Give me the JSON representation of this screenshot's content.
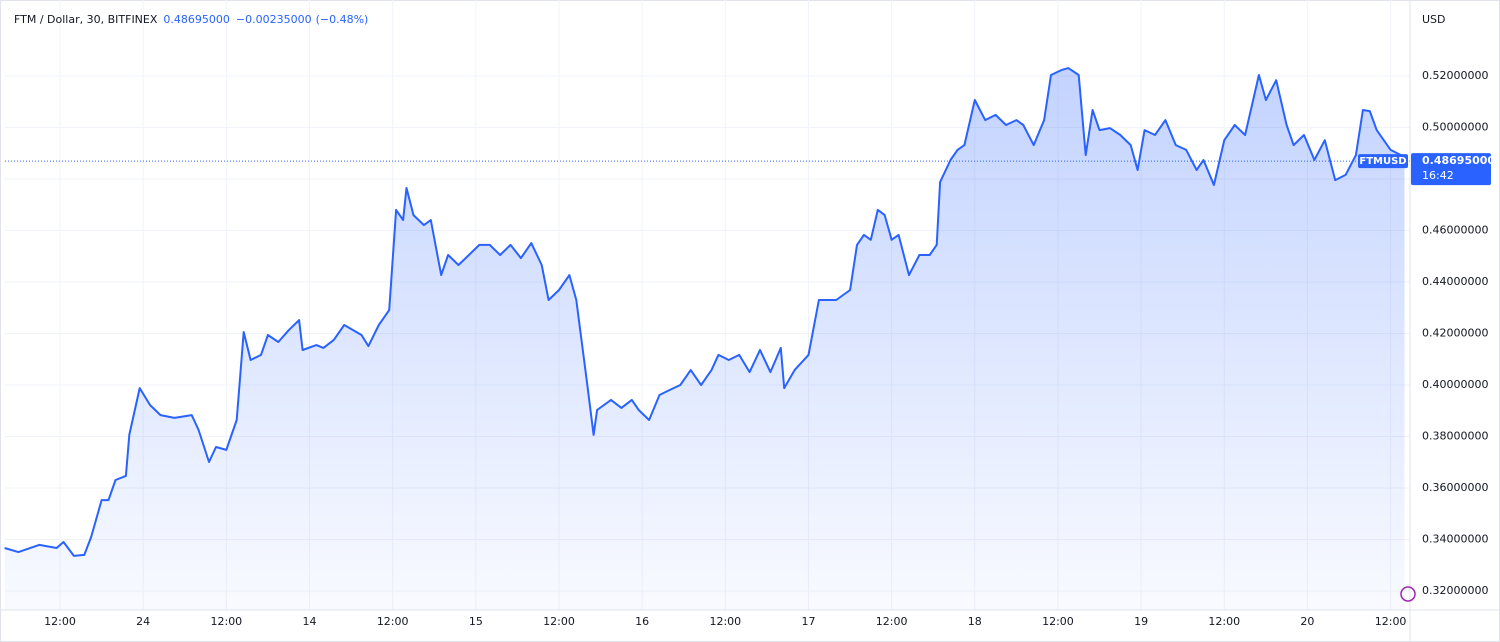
{
  "chart_data": {
    "type": "area",
    "title": "FTM / Dollar, 30, BITFINEX",
    "last_price": {
      "value": 0.48695,
      "label": "0.48695000"
    },
    "change": {
      "value": -0.00235,
      "label": "−0.00235000"
    },
    "change_pct": {
      "value": -0.48,
      "label": "(−0.48%)"
    },
    "currency": "USD",
    "countdown": "16:42",
    "x": [
      4,
      6,
      9,
      11.5,
      12.5,
      14,
      15.5,
      16.5,
      18,
      19,
      20,
      21.5,
      22,
      23.5,
      25,
      26.5,
      28.5,
      31,
      32,
      33.5,
      34.5,
      36,
      37.5,
      38.5,
      39.5,
      41,
      42,
      43.5,
      45,
      46.5,
      47,
      49,
      50,
      51.5,
      53,
      55.5,
      56.5,
      58,
      59.5,
      60.5,
      61.5,
      62,
      63,
      64.5,
      65.5,
      67,
      68,
      69.5,
      71,
      72.5,
      74,
      75.5,
      77,
      78.5,
      80,
      81.5,
      82.5,
      84,
      85.5,
      86.5,
      88,
      89,
      89.5,
      91.5,
      93,
      94.5,
      95.5,
      97,
      98.5,
      100,
      101.5,
      103,
      104.5,
      106,
      107,
      108.5,
      110,
      111.5,
      113,
      114.5,
      116,
      116.5,
      118,
      120,
      121.5,
      124,
      126,
      127,
      128,
      129,
      130,
      131,
      132,
      133,
      134.5,
      136,
      137.5,
      138.5,
      139,
      140.5,
      141.5,
      142.5,
      144,
      145.5,
      147,
      148.5,
      150,
      151,
      152.5,
      154,
      155,
      156.5,
      157.5,
      159,
      160,
      161,
      162,
      163.5,
      165,
      166.5,
      167.5,
      168.5,
      170,
      171.5,
      173,
      174.5,
      176,
      177,
      178.5,
      180,
      181.5,
      183,
      185,
      186,
      187.5,
      189,
      190,
      191.5,
      193,
      194.5,
      196,
      197.5,
      199,
      200,
      201,
      202,
      204,
      205.5,
      206
    ],
    "series": [
      {
        "name": "FTMUSD",
        "color": "#2962ff",
        "values": [
          0.3367,
          0.3351,
          0.3379,
          0.3367,
          0.339,
          0.3336,
          0.334,
          0.341,
          0.3553,
          0.3553,
          0.3631,
          0.3647,
          0.3806,
          0.3988,
          0.3922,
          0.3883,
          0.3872,
          0.3883,
          0.3825,
          0.3701,
          0.3759,
          0.3748,
          0.3864,
          0.4206,
          0.4097,
          0.4117,
          0.4194,
          0.4167,
          0.4213,
          0.4252,
          0.4136,
          0.4155,
          0.4144,
          0.4175,
          0.4233,
          0.4194,
          0.4151,
          0.4233,
          0.4291,
          0.468,
          0.4641,
          0.4765,
          0.466,
          0.4621,
          0.4641,
          0.4427,
          0.4505,
          0.4466,
          0.4505,
          0.4544,
          0.4544,
          0.4505,
          0.4544,
          0.4493,
          0.4551,
          0.4466,
          0.433,
          0.4369,
          0.4427,
          0.433,
          0.4019,
          0.3806,
          0.3903,
          0.3942,
          0.3911,
          0.3942,
          0.3903,
          0.3864,
          0.3961,
          0.3981,
          0.4,
          0.4058,
          0.4,
          0.4058,
          0.4117,
          0.4097,
          0.4117,
          0.405,
          0.4136,
          0.405,
          0.4144,
          0.3988,
          0.4058,
          0.4117,
          0.433,
          0.433,
          0.4369,
          0.4544,
          0.4583,
          0.4564,
          0.468,
          0.466,
          0.4564,
          0.4583,
          0.4427,
          0.4505,
          0.4505,
          0.4544,
          0.4788,
          0.4874,
          0.4913,
          0.4932,
          0.5107,
          0.5029,
          0.5049,
          0.501,
          0.5029,
          0.501,
          0.4932,
          0.5029,
          0.5204,
          0.5223,
          0.5231,
          0.5204,
          0.4893,
          0.5068,
          0.499,
          0.4998,
          0.4971,
          0.4932,
          0.4835,
          0.499,
          0.4971,
          0.5029,
          0.4932,
          0.4913,
          0.4835,
          0.4874,
          0.4777,
          0.4951,
          0.501,
          0.4971,
          0.5204,
          0.5107,
          0.5184,
          0.501,
          0.4932,
          0.4971,
          0.4874,
          0.4951,
          0.4796,
          0.4816,
          0.4893,
          0.5068,
          0.5064,
          0.499,
          0.4913,
          0.4893,
          0.48695
        ]
      }
    ],
    "xlim": [
      4.06,
      206.8
    ],
    "ylim": [
      0.3126,
      0.5476
    ],
    "xticks": [
      {
        "value": 12,
        "label": "12:00"
      },
      24,
      {
        "value": 36,
        "label": "12:00"
      },
      {
        "value": 48,
        "label": "14"
      },
      {
        "value": 60,
        "label": "12:00"
      },
      {
        "value": 72,
        "label": "15"
      },
      {
        "value": 84,
        "label": "12:00"
      },
      {
        "value": 96,
        "label": "16"
      },
      {
        "value": 108,
        "label": "12:00"
      },
      {
        "value": 120,
        "label": "17"
      },
      {
        "value": 132,
        "label": "12:00"
      },
      {
        "value": 144,
        "label": "18"
      },
      {
        "value": 156,
        "label": "12:00"
      },
      {
        "value": 168,
        "label": "19"
      },
      {
        "value": 180,
        "label": "12:00"
      },
      {
        "value": 192,
        "label": "20"
      },
      {
        "value": 204,
        "label": "12:00"
      }
    ],
    "yticks": [
      {
        "value": 0.32,
        "label": "0.32000000"
      },
      {
        "value": 0.34,
        "label": "0.34000000"
      },
      {
        "value": 0.36,
        "label": "0.36000000"
      },
      {
        "value": 0.38,
        "label": "0.38000000"
      },
      {
        "value": 0.4,
        "label": "0.40000000"
      },
      {
        "value": 0.42,
        "label": "0.42000000"
      },
      {
        "value": 0.44,
        "label": "0.44000000"
      },
      {
        "value": 0.46,
        "label": "0.46000000"
      },
      {
        "value": 0.48,
        "label": "0.48000000"
      },
      {
        "value": 0.5,
        "label": "0.50000000"
      },
      {
        "value": 0.52,
        "label": "0.52000000"
      }
    ],
    "grid": true
  }
}
